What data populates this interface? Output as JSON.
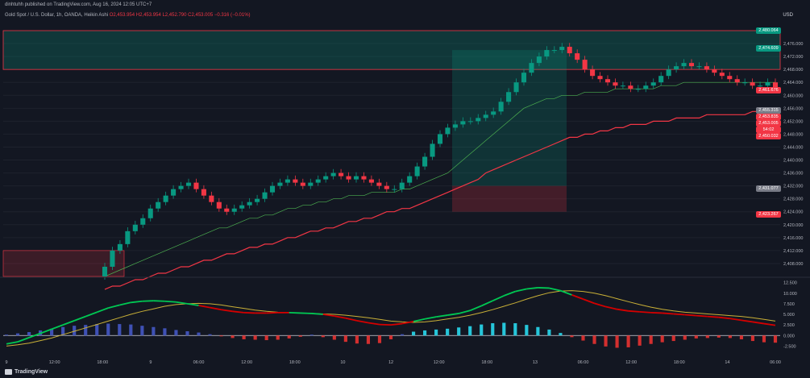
{
  "header": {
    "line1": "dinhtuhh published on TradingView.com, Aug 16, 2024 12:05 UTC+7",
    "symbol": "Gold Spot / U.S. Dollar, 1h, OANDA, Heikin Ashi",
    "ohlc": "O2,453.954 H2,453.954 L2,452.790 C2,453.005 −0.316 (−0.01%)"
  },
  "currency": "USD",
  "watermark": "TradingView",
  "price_labels": [
    {
      "text": "2,480.064",
      "value": 2480.064,
      "color": "#089981"
    },
    {
      "text": "2,474.609",
      "value": 2474.609,
      "color": "#089981"
    },
    {
      "text": "2,461.676",
      "value": 2461.676,
      "color": "#f23645"
    },
    {
      "text": "2,455.315",
      "value": 2455.315,
      "color": "#787b86"
    },
    {
      "text": "2,453.835",
      "value": 2453.835,
      "color": "#f23645"
    },
    {
      "text": "2,453.005",
      "value": 2453.005,
      "color": "#f23645"
    },
    {
      "text": "54:02",
      "value": 2451.6,
      "color": "#f23645"
    },
    {
      "text": "2,450.032",
      "value": 2450.032,
      "color": "#f23645"
    },
    {
      "text": "2,431.077",
      "value": 2431.077,
      "color": "#787b86"
    },
    {
      "text": "2,423.267",
      "value": 2423.267,
      "color": "#f23645"
    }
  ],
  "chart_data": {
    "type": "candlestick",
    "price_axis": {
      "range": [
        2404,
        2480
      ],
      "ticks": [
        2408,
        2412,
        2416,
        2420,
        2424,
        2428,
        2432,
        2436,
        2440,
        2444,
        2448,
        2452,
        2456,
        2460,
        2464,
        2468,
        2472,
        2476
      ]
    },
    "time_axis": [
      "9",
      "12:00",
      "18:00",
      "9",
      "06:00",
      "12:00",
      "18:00",
      "10",
      "12",
      "12:00",
      "18:00",
      "13",
      "06:00",
      "12:00",
      "18:00",
      "14",
      "06:00"
    ],
    "candles_close": [
      2407,
      2412,
      2414,
      2418,
      2420,
      2422,
      2425,
      2427,
      2429,
      2431,
      2432,
      2433,
      2431,
      2429,
      2427,
      2425,
      2424,
      2425,
      2426,
      2427,
      2428,
      2430,
      2432,
      2433,
      2434,
      2433,
      2432,
      2433,
      2434,
      2435,
      2436,
      2435,
      2434,
      2435,
      2434,
      2433,
      2432,
      2431,
      2431,
      2433,
      2435,
      2438,
      2441,
      2445,
      2448,
      2450,
      2451,
      2452,
      2452,
      2453,
      2454,
      2455,
      2458,
      2461,
      2464,
      2467,
      2470,
      2472,
      2474,
      2474,
      2475,
      2473,
      2471,
      2468,
      2466,
      2465,
      2464,
      2463,
      2463,
      2462,
      2462,
      2463,
      2464,
      2466,
      2468,
      2469,
      2470,
      2469,
      2469,
      2468,
      2467,
      2466,
      2465,
      2464,
      2464,
      2463,
      2463,
      2464,
      2462
    ],
    "candles_open": [
      2404,
      2407,
      2412,
      2414,
      2418,
      2420,
      2422,
      2425,
      2427,
      2429,
      2431,
      2432,
      2433,
      2431,
      2429,
      2427,
      2425,
      2424,
      2425,
      2426,
      2427,
      2428,
      2430,
      2432,
      2433,
      2434,
      2433,
      2432,
      2433,
      2434,
      2435,
      2436,
      2435,
      2434,
      2435,
      2434,
      2433,
      2432,
      2431,
      2431,
      2433,
      2435,
      2438,
      2441,
      2445,
      2448,
      2450,
      2451,
      2452,
      2452,
      2453,
      2454,
      2455,
      2458,
      2461,
      2464,
      2467,
      2470,
      2472,
      2474,
      2474,
      2475,
      2473,
      2471,
      2468,
      2466,
      2465,
      2464,
      2463,
      2463,
      2462,
      2462,
      2463,
      2464,
      2466,
      2468,
      2469,
      2470,
      2469,
      2469,
      2468,
      2467,
      2466,
      2465,
      2464,
      2464,
      2463,
      2463,
      2464
    ],
    "ma_fast": [
      2404,
      2405,
      2406,
      2407,
      2408,
      2409,
      2410,
      2411,
      2412,
      2413,
      2414,
      2415,
      2416,
      2417,
      2418,
      2419,
      2419,
      2420,
      2421,
      2422,
      2422,
      2423,
      2423,
      2424,
      2425,
      2425,
      2426,
      2426,
      2427,
      2427,
      2428,
      2428,
      2429,
      2429,
      2429,
      2430,
      2430,
      2430,
      2430,
      2431,
      2431,
      2432,
      2433,
      2434,
      2435,
      2436,
      2438,
      2440,
      2442,
      2444,
      2446,
      2448,
      2450,
      2452,
      2454,
      2456,
      2457,
      2458,
      2459,
      2459,
      2460,
      2460,
      2460,
      2461,
      2461,
      2461,
      2461,
      2462,
      2462,
      2462,
      2462,
      2462,
      2462,
      2463,
      2463,
      2463,
      2464,
      2464,
      2464,
      2464,
      2464,
      2464,
      2464,
      2464,
      2464,
      2464,
      2464,
      2464,
      2464
    ],
    "ma_slow": [
      2400,
      2401,
      2401,
      2402,
      2403,
      2403,
      2404,
      2405,
      2405,
      2406,
      2407,
      2407,
      2408,
      2409,
      2409,
      2410,
      2411,
      2411,
      2412,
      2413,
      2413,
      2414,
      2414,
      2415,
      2416,
      2416,
      2417,
      2418,
      2418,
      2419,
      2419,
      2420,
      2421,
      2421,
      2422,
      2422,
      2423,
      2424,
      2424,
      2425,
      2425,
      2426,
      2427,
      2428,
      2429,
      2430,
      2431,
      2432,
      2433,
      2434,
      2436,
      2437,
      2438,
      2439,
      2440,
      2441,
      2442,
      2443,
      2444,
      2445,
      2446,
      2447,
      2447,
      2448,
      2448,
      2449,
      2449,
      2450,
      2450,
      2451,
      2451,
      2451,
      2452,
      2452,
      2452,
      2453,
      2453,
      2453,
      2453,
      2454,
      2454,
      2454,
      2454,
      2454,
      2454,
      2455,
      2455,
      2455,
      2455
    ],
    "oscillator": {
      "range": [
        -3,
        13
      ],
      "ticks": [
        12.5,
        10.0,
        7.5,
        5.0,
        2.5,
        0.0,
        -2.5
      ],
      "line_a": [
        -2,
        -1.5,
        -0.5,
        0.5,
        1.5,
        2.5,
        3.5,
        4.5,
        5.5,
        6.5,
        7.2,
        7.8,
        8.1,
        8.2,
        8.1,
        7.9,
        7.5,
        7.1,
        6.6,
        6.1,
        5.7,
        5.4,
        5.3,
        5.3,
        5.4,
        5.4,
        5.3,
        5.2,
        5.0,
        4.6,
        4.1,
        3.5,
        3.0,
        2.6,
        2.5,
        2.8,
        3.3,
        3.9,
        4.4,
        4.8,
        5.2,
        5.9,
        7.0,
        8.2,
        9.4,
        10.4,
        11.0,
        11.3,
        11.2,
        10.6,
        9.6,
        8.6,
        7.6,
        6.8,
        6.2,
        5.8,
        5.6,
        5.4,
        5.3,
        5.1,
        4.9,
        4.7,
        4.5,
        4.3,
        4.0,
        3.6,
        3.2,
        2.8,
        2.4
      ],
      "line_b": [
        -2.5,
        -2.2,
        -1.8,
        -1.2,
        -0.6,
        0.2,
        1.0,
        1.8,
        2.6,
        3.4,
        4.2,
        5.0,
        5.7,
        6.3,
        6.9,
        7.3,
        7.5,
        7.6,
        7.5,
        7.2,
        6.8,
        6.4,
        6.0,
        5.7,
        5.5,
        5.4,
        5.3,
        5.2,
        5.1,
        5.0,
        4.8,
        4.5,
        4.2,
        3.8,
        3.4,
        3.2,
        3.1,
        3.2,
        3.5,
        3.9,
        4.3,
        4.8,
        5.4,
        6.1,
        6.9,
        7.7,
        8.6,
        9.4,
        10.1,
        10.5,
        10.6,
        10.4,
        10.0,
        9.4,
        8.7,
        8.0,
        7.3,
        6.7,
        6.2,
        5.8,
        5.5,
        5.3,
        5.1,
        4.9,
        4.7,
        4.5,
        4.2,
        3.8,
        3.4
      ],
      "histogram": [
        0.2,
        0.5,
        0.8,
        1.2,
        1.6,
        2.0,
        2.3,
        2.5,
        2.7,
        2.8,
        2.7,
        2.6,
        2.3,
        2.0,
        1.7,
        1.3,
        1.0,
        0.7,
        0.3,
        -0.2,
        -0.6,
        -0.9,
        -1.0,
        -1.1,
        -1.0,
        -0.7,
        -0.3,
        0.2,
        -0.4,
        -1.0,
        -1.5,
        -1.9,
        -2.0,
        -1.8,
        -0.9,
        0.3,
        0.9,
        1.2,
        1.4,
        1.6,
        1.9,
        2.2,
        2.6,
        2.9,
        3.0,
        2.9,
        2.5,
        2.0,
        1.4,
        0.6,
        -0.4,
        -1.2,
        -2.0,
        -2.6,
        -2.9,
        -2.8,
        -2.4,
        -2.0,
        -1.6,
        -1.3,
        -1.0,
        -0.7,
        -0.6,
        -0.5,
        -0.6,
        -0.9,
        -1.3,
        -1.6,
        -1.7
      ]
    }
  }
}
